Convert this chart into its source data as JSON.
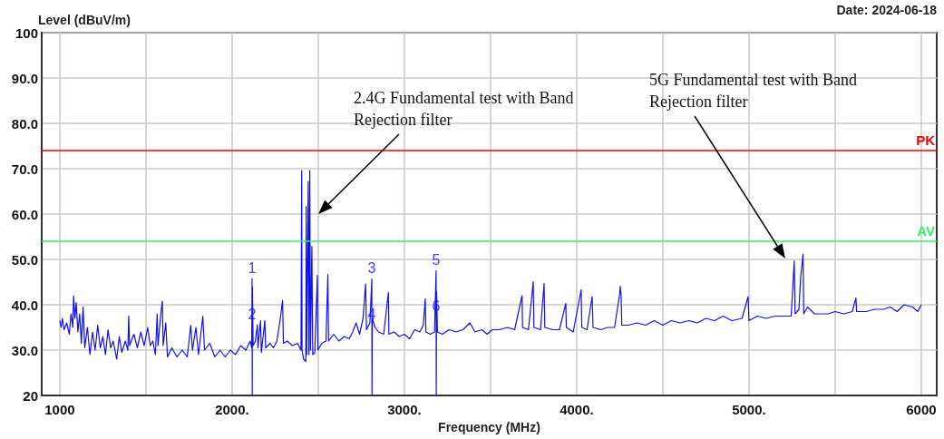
{
  "chart_data": {
    "type": "line",
    "xlabel": "Frequency (MHz)",
    "ylabel": "Level (dBuV/m)",
    "color": "#1010f0",
    "xlim": [
      895,
      6090
    ],
    "ylim": [
      20,
      100
    ],
    "xticks": [
      1000,
      {
        "value": 1500,
        "label": null
      },
      {
        "value": 2000,
        "label": "2000."
      },
      {
        "value": 2500,
        "label": null
      },
      {
        "value": 3000,
        "label": "3000."
      },
      {
        "value": 3500,
        "label": null
      },
      {
        "value": 4000,
        "label": "4000."
      },
      {
        "value": 4500,
        "label": null
      },
      {
        "value": 5000,
        "label": "5000."
      },
      {
        "value": 5500,
        "label": null
      },
      6000
    ],
    "yticks": [
      20,
      {
        "value": 30,
        "label": "30.0"
      },
      {
        "value": 40,
        "label": "40.0"
      },
      {
        "value": 50,
        "label": "50.0"
      },
      {
        "value": 60,
        "label": "60.0"
      },
      {
        "value": 70,
        "label": "70.0"
      },
      {
        "value": 80,
        "label": "80.0"
      },
      {
        "value": 90,
        "label": "90.0"
      },
      100
    ],
    "grid": true,
    "ref_lines": [
      {
        "axis": "y",
        "value": 74,
        "label": "PK",
        "color": "#ff0000"
      },
      {
        "axis": "y",
        "value": 54,
        "label": "AV",
        "color": "#33ee66"
      }
    ],
    "annotations": [
      "Date: 2024-06-18",
      "2.4G Fundamental test with Band Rejection filter",
      "5G Fundamental test with Band Rejection filter",
      {
        "text": "1",
        "x": 2116,
        "y": 45.8
      },
      {
        "text": "2",
        "x": 2116,
        "y": 45.8
      },
      {
        "text": "3",
        "x": 2811,
        "y": 45.7
      },
      {
        "text": "4",
        "x": 2811,
        "y": 45.7
      },
      {
        "text": "5",
        "x": 3184,
        "y": 47.5
      },
      {
        "text": "6",
        "x": 3184,
        "y": 47.5
      }
    ],
    "x": [
      1000,
      1008,
      1015,
      1025,
      1040,
      1055,
      1065,
      1075,
      1080,
      1088,
      1095,
      1105,
      1115,
      1125,
      1135,
      1145,
      1160,
      1175,
      1190,
      1205,
      1220,
      1235,
      1250,
      1265,
      1280,
      1295,
      1310,
      1330,
      1345,
      1360,
      1380,
      1395,
      1400,
      1405,
      1430,
      1450,
      1470,
      1490,
      1510,
      1525,
      1540,
      1555,
      1565,
      1570,
      1585,
      1595,
      1600,
      1615,
      1625,
      1650,
      1680,
      1710,
      1740,
      1760,
      1770,
      1790,
      1805,
      1830,
      1840,
      1870,
      1900,
      1930,
      1960,
      1990,
      2020,
      2050,
      2080,
      2105,
      2114,
      2116,
      2117,
      2118,
      2122,
      2135,
      2147,
      2150,
      2165,
      2170,
      2190,
      2195,
      2220,
      2240,
      2260,
      2280,
      2293,
      2298,
      2320,
      2350,
      2380,
      2400,
      2404,
      2406,
      2415,
      2428,
      2430,
      2433,
      2442,
      2446,
      2451,
      2455,
      2463,
      2468,
      2480,
      2495,
      2498,
      2520,
      2545,
      2556,
      2560,
      2590,
      2620,
      2650,
      2680,
      2700,
      2720,
      2740,
      2760,
      2775,
      2780,
      2800,
      2811,
      2812,
      2814,
      2830,
      2850,
      2880,
      2907,
      2910,
      2940,
      2970,
      3000,
      3030,
      3060,
      3090,
      3110,
      3121,
      3125,
      3150,
      3175,
      3184,
      3185,
      3187,
      3192,
      3220,
      3260,
      3300,
      3340,
      3380,
      3410,
      3450,
      3480,
      3510,
      3550,
      3600,
      3640,
      3683,
      3686,
      3720,
      3748,
      3752,
      3790,
      3811,
      3815,
      3860,
      3900,
      3937,
      3940,
      3980,
      4026,
      4030,
      4060,
      4090,
      4095,
      4140,
      4180,
      4220,
      4250,
      4253,
      4258,
      4262,
      4300,
      4350,
      4400,
      4450,
      4500,
      4550,
      4600,
      4650,
      4700,
      4750,
      4800,
      4850,
      4900,
      4960,
      4995,
      5000,
      5050,
      5100,
      5150,
      5200,
      5245,
      5263,
      5268,
      5290,
      5300,
      5314,
      5318,
      5340,
      5380,
      5420,
      5460,
      5500,
      5550,
      5600,
      5621,
      5625,
      5680,
      5730,
      5780,
      5820,
      5860,
      5900,
      5950,
      5980,
      6000
    ],
    "values": [
      36.5,
      35,
      37,
      34.5,
      36,
      33.5,
      38,
      35,
      42,
      37,
      40.5,
      34,
      38,
      31.5,
      39.5,
      30.5,
      35,
      29,
      34,
      30,
      35.5,
      30.5,
      33,
      29,
      34.5,
      30.5,
      32,
      28,
      33,
      29.5,
      32,
      30,
      37.5,
      31,
      33.5,
      30.5,
      34,
      31,
      35,
      31,
      32,
      29,
      38,
      31,
      37.5,
      40.8,
      31,
      36,
      28.5,
      30.5,
      28.5,
      30,
      28.5,
      35.5,
      30,
      35,
      29,
      37.5,
      30,
      31.5,
      28.5,
      30,
      28.5,
      30,
      29,
      31,
      30,
      32,
      30.5,
      45.8,
      20,
      44,
      31,
      32,
      35.6,
      30.5,
      36.5,
      29.5,
      36.5,
      30.5,
      31.5,
      30.5,
      32,
      37,
      41,
      31.5,
      32,
      31,
      31.5,
      30,
      69.6,
      30,
      28,
      27.5,
      61.7,
      29,
      67.2,
      29,
      69.6,
      30,
      52.9,
      29,
      29.5,
      46.5,
      30,
      31.5,
      32,
      46.7,
      32,
      33.5,
      32,
      33,
      32.5,
      34,
      36,
      33.5,
      37,
      44.6,
      34.5,
      36,
      45.7,
      20,
      37,
      35,
      34,
      33.5,
      42.7,
      33.5,
      34,
      33,
      33.5,
      32.5,
      34.5,
      34,
      35.5,
      41.3,
      34,
      33.5,
      34,
      47.5,
      20,
      43,
      34,
      33.5,
      34.5,
      34,
      34.5,
      36,
      34,
      34.5,
      33.5,
      34.5,
      34.5,
      35,
      34.5,
      42,
      35,
      34.5,
      45.1,
      35,
      34.5,
      44.7,
      35,
      34.5,
      34.5,
      40.3,
      35,
      34,
      43.3,
      35,
      34.5,
      41.8,
      35,
      34.5,
      35,
      35,
      42.5,
      44.1,
      42,
      35.5,
      35.5,
      36,
      35.5,
      36.5,
      35.5,
      36.5,
      36,
      36.5,
      36,
      37,
      36.5,
      37.5,
      36.5,
      37,
      41.8,
      36.5,
      37.5,
      37,
      37.5,
      37.5,
      37.5,
      49.7,
      38,
      39,
      46,
      51.2,
      38,
      39.5,
      38,
      38,
      38,
      38.5,
      38,
      38.5,
      41.5,
      38.5,
      38.5,
      39,
      39,
      39.5,
      38.5,
      40,
      39.5,
      38.5,
      40
    ]
  }
}
